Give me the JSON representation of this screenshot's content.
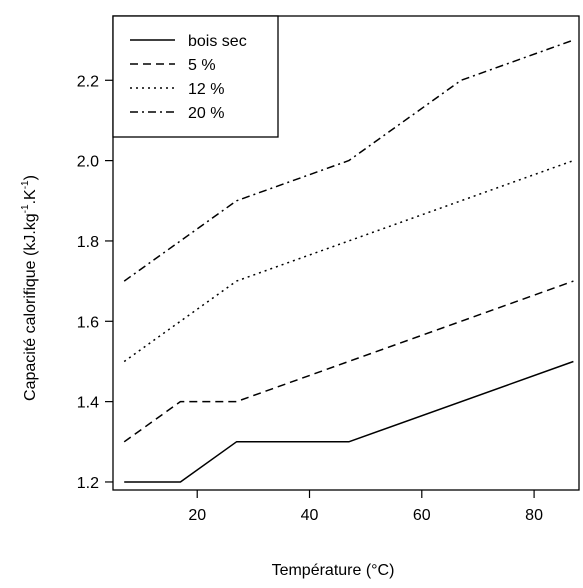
{
  "chart_data": {
    "type": "line",
    "title": "",
    "xlabel": "Température (°C)",
    "ylabel_parts": {
      "main": "Capacité calorifique (kJ.kg",
      "sup1": "-1",
      "mid": ".K",
      "sup2": "-1",
      "end": ")"
    },
    "xlim": [
      5,
      88
    ],
    "ylim": [
      1.18,
      2.36
    ],
    "x_ticks": [
      20,
      40,
      60,
      80
    ],
    "y_ticks": [
      1.2,
      1.4,
      1.6,
      1.8,
      2.0,
      2.2
    ],
    "x_tick_labels": [
      "20",
      "40",
      "60",
      "80"
    ],
    "y_tick_labels": [
      "1.2",
      "1.4",
      "1.6",
      "1.8",
      "2.0",
      "2.2"
    ],
    "grid": false,
    "legend_position": "top-left",
    "series": [
      {
        "name": "bois sec",
        "dash": "solid",
        "points": [
          [
            7,
            1.2
          ],
          [
            17,
            1.2
          ],
          [
            27,
            1.3
          ],
          [
            47,
            1.3
          ],
          [
            87,
            1.5
          ]
        ]
      },
      {
        "name": "5 %",
        "dash": "dashed",
        "points": [
          [
            7,
            1.3
          ],
          [
            17,
            1.4
          ],
          [
            27,
            1.4
          ],
          [
            87,
            1.7
          ]
        ]
      },
      {
        "name": "12 %",
        "dash": "dotted",
        "points": [
          [
            7,
            1.5
          ],
          [
            27,
            1.7
          ],
          [
            87,
            2.0
          ]
        ]
      },
      {
        "name": "20 %",
        "dash": "dashdot",
        "points": [
          [
            7,
            1.7
          ],
          [
            27,
            1.9
          ],
          [
            47,
            2.0
          ],
          [
            67,
            2.2
          ],
          [
            87,
            2.3
          ]
        ]
      }
    ]
  }
}
